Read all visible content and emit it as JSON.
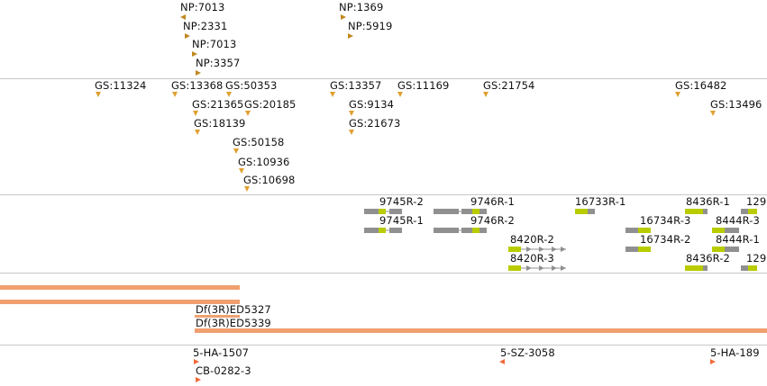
{
  "colors": {
    "np_marker": "#c08820",
    "gs_marker": "#e0a030",
    "deficiency_bar": "#f0a070",
    "insertion_marker": "#f06a3a",
    "transcript_gray": "#909090",
    "transcript_green": "#b8cc00",
    "divider": "#c8c8c8"
  },
  "np_track": {
    "features": [
      {
        "label": "NP:7013",
        "dir": "left"
      },
      {
        "label": "NP:2331",
        "dir": "right"
      },
      {
        "label": "NP:7013",
        "dir": "right"
      },
      {
        "label": "NP:3357",
        "dir": "right"
      },
      {
        "label": "NP:1369",
        "dir": "right"
      },
      {
        "label": "NP:5919",
        "dir": "right"
      }
    ]
  },
  "gs_track": {
    "features": [
      {
        "label": "GS:11324"
      },
      {
        "label": "GS:13368"
      },
      {
        "label": "GS:50353"
      },
      {
        "label": "GS:13357"
      },
      {
        "label": "GS:11169"
      },
      {
        "label": "GS:21754"
      },
      {
        "label": "GS:16482"
      },
      {
        "label": "GS:21365"
      },
      {
        "label": "GS:20185"
      },
      {
        "label": "GS:9134"
      },
      {
        "label": "GS:13496"
      },
      {
        "label": "GS:18139"
      },
      {
        "label": "GS:21673"
      },
      {
        "label": "GS:50158"
      },
      {
        "label": "GS:10936"
      },
      {
        "label": "GS:10698"
      }
    ]
  },
  "transcript_track": {
    "features": [
      {
        "label": "9745R-2"
      },
      {
        "label": "9746R-1"
      },
      {
        "label": "16733R-1"
      },
      {
        "label": "8436R-1"
      },
      {
        "label": "129"
      },
      {
        "label": "9745R-1"
      },
      {
        "label": "9746R-2"
      },
      {
        "label": "16734R-3"
      },
      {
        "label": "8444R-3"
      },
      {
        "label": "8420R-2"
      },
      {
        "label": "16734R-2"
      },
      {
        "label": "8444R-1"
      },
      {
        "label": "8420R-3"
      },
      {
        "label": "8436R-2"
      },
      {
        "label": "129"
      }
    ]
  },
  "deficiency_track": {
    "features": [
      {
        "label": "Df(3R)ED5327"
      },
      {
        "label": "Df(3R)ED5339"
      }
    ]
  },
  "insertion_track": {
    "features": [
      {
        "label": "5-HA-1507",
        "dir": "right"
      },
      {
        "label": "CB-0282-3",
        "dir": "right"
      },
      {
        "label": "5-SZ-3058",
        "dir": "left"
      },
      {
        "label": "5-HA-189",
        "dir": "right"
      }
    ]
  }
}
